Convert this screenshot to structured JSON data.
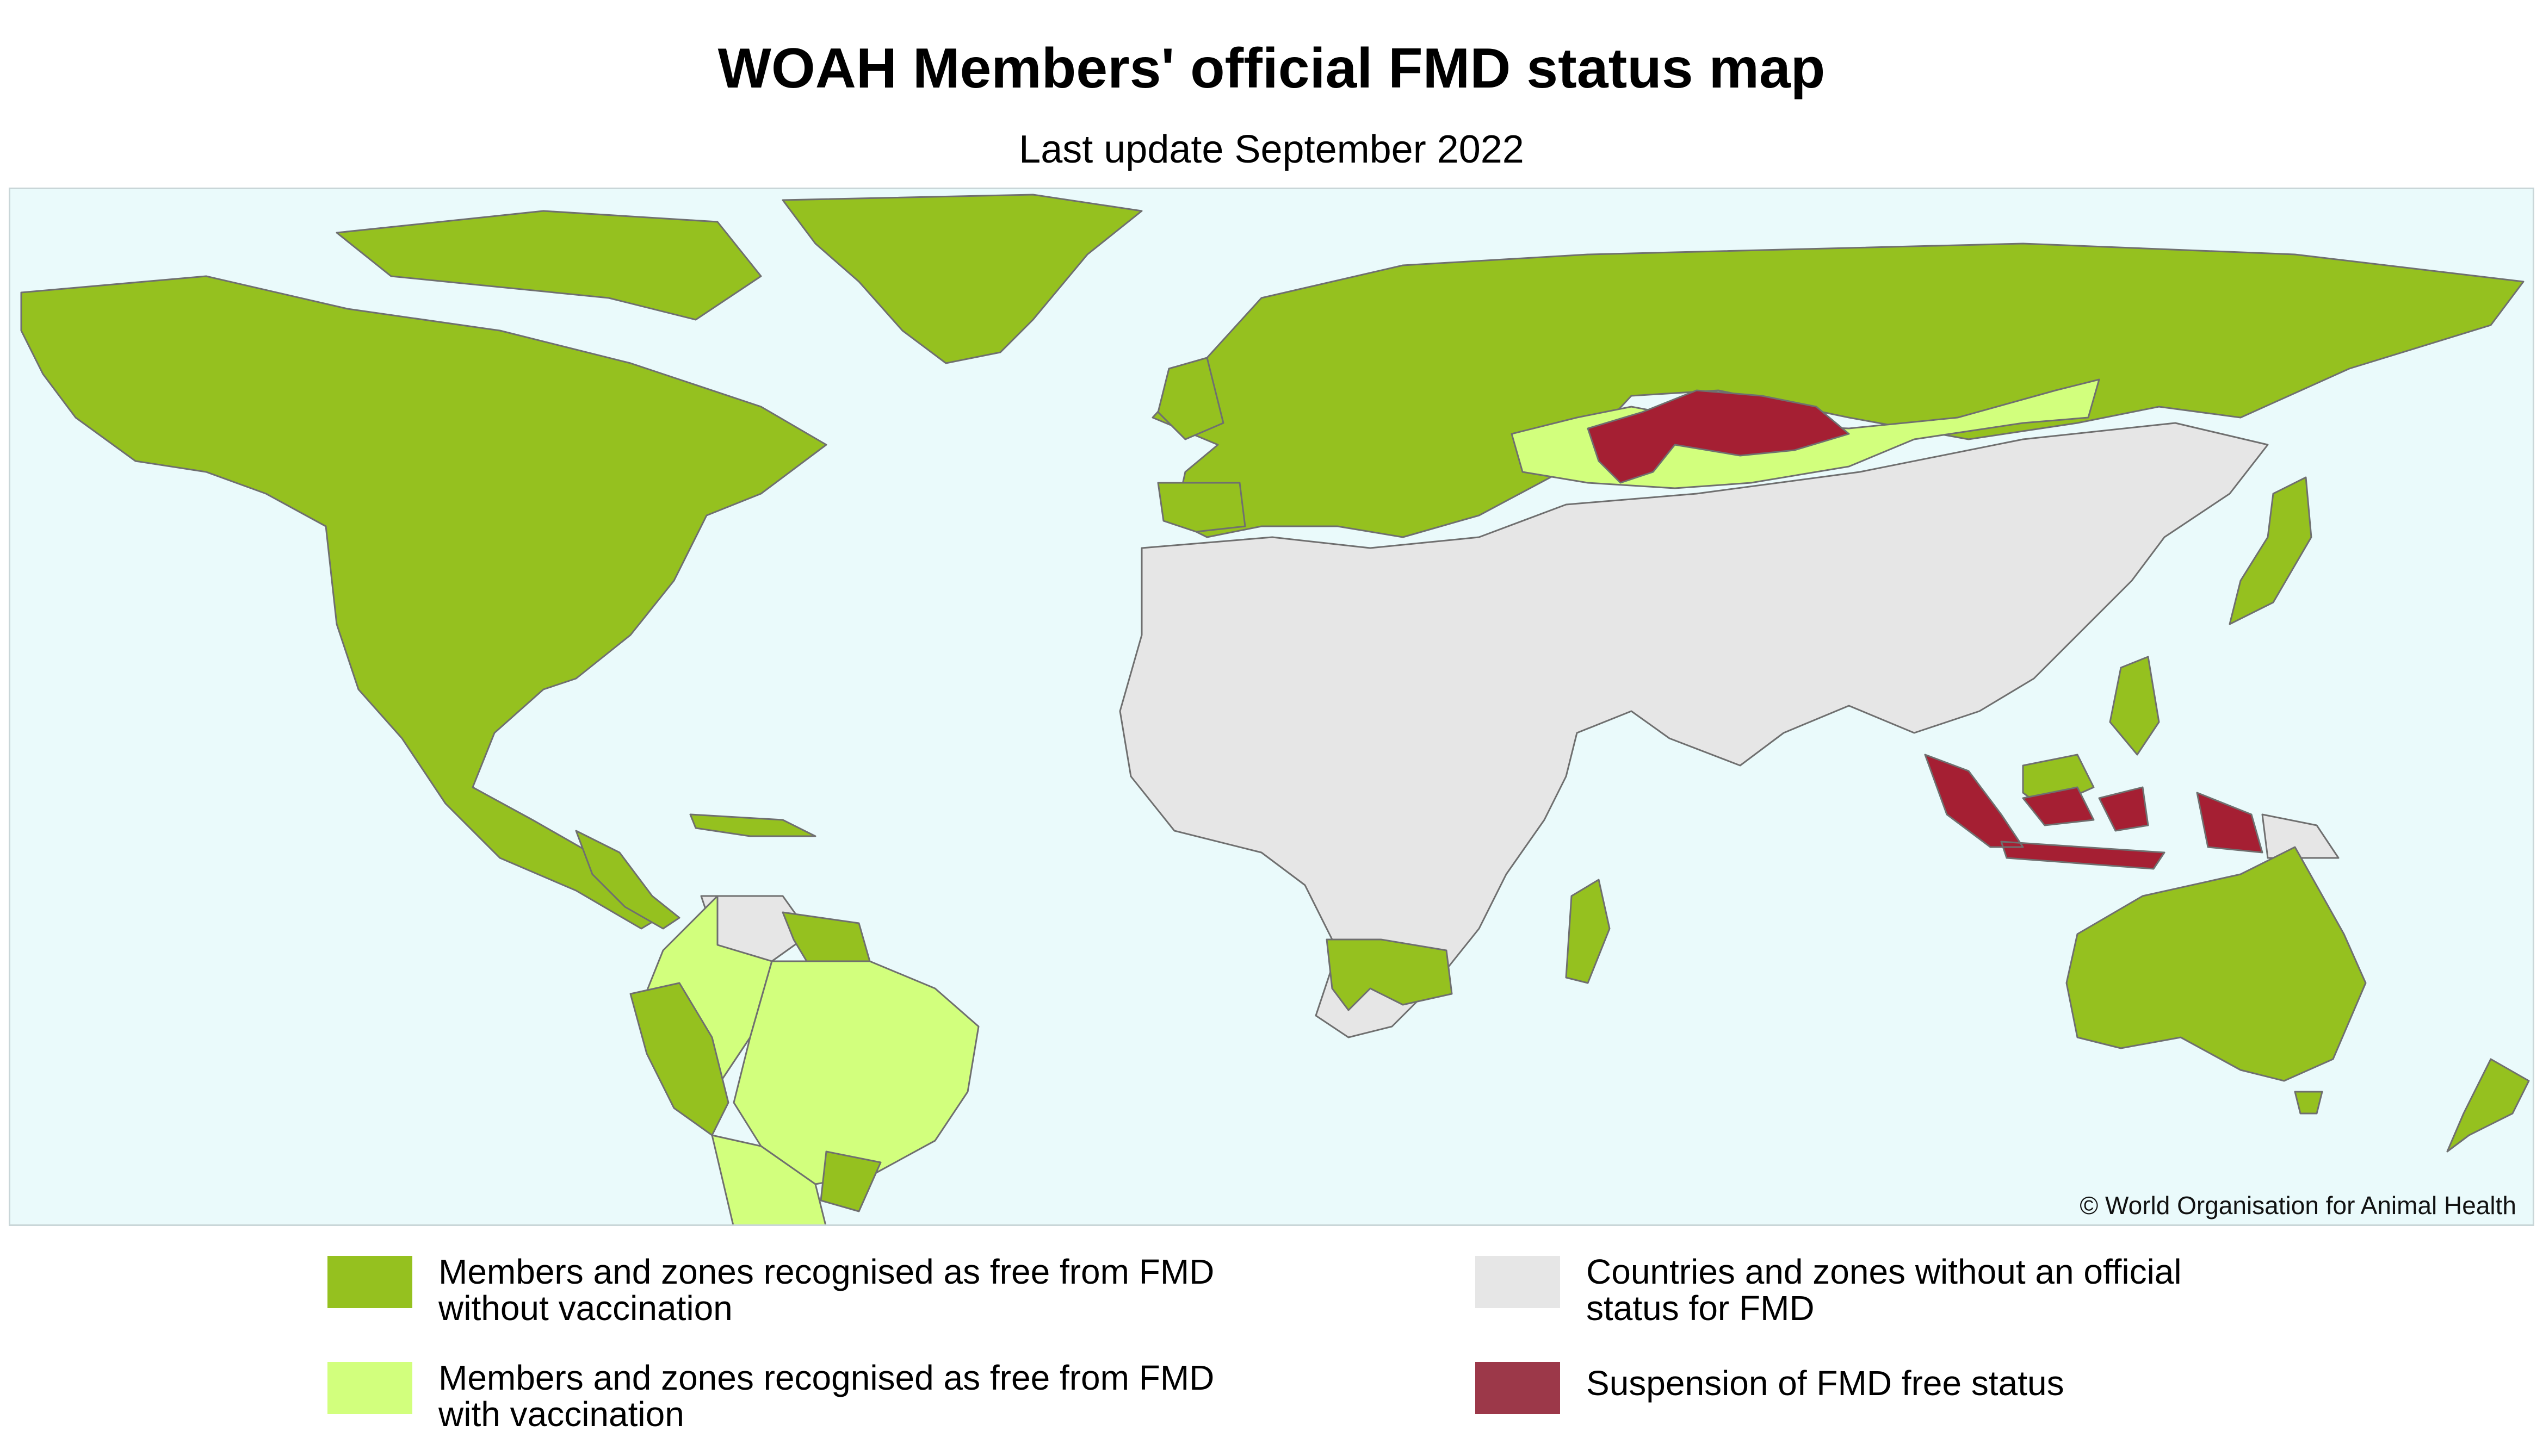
{
  "title": "WOAH Members' official FMD status map",
  "subtitle": "Last update September 2022",
  "copyright": "© World Organisation for Animal Health",
  "colors": {
    "ocean": "#eafafb",
    "free_without_vaccination": "#95c11f",
    "free_with_vaccination": "#d2ff7d",
    "no_official_status": "#e6e6e6",
    "suspension": "#a51f33",
    "legend_suspension": "#9c3849",
    "border": "#6f6f6f"
  },
  "legend": [
    {
      "key": "free_without_vaccination",
      "line1": "Members and zones recognised as free from FMD",
      "line2": "without vaccination"
    },
    {
      "key": "free_with_vaccination",
      "line1": "Members and zones recognised as free from FMD",
      "line2": "with vaccination"
    },
    {
      "key": "no_official_status",
      "line1": "Countries and zones without an official",
      "line2": "status for FMD"
    },
    {
      "key": "suspension",
      "line1": "Suspension of FMD free status",
      "line2": ""
    }
  ]
}
